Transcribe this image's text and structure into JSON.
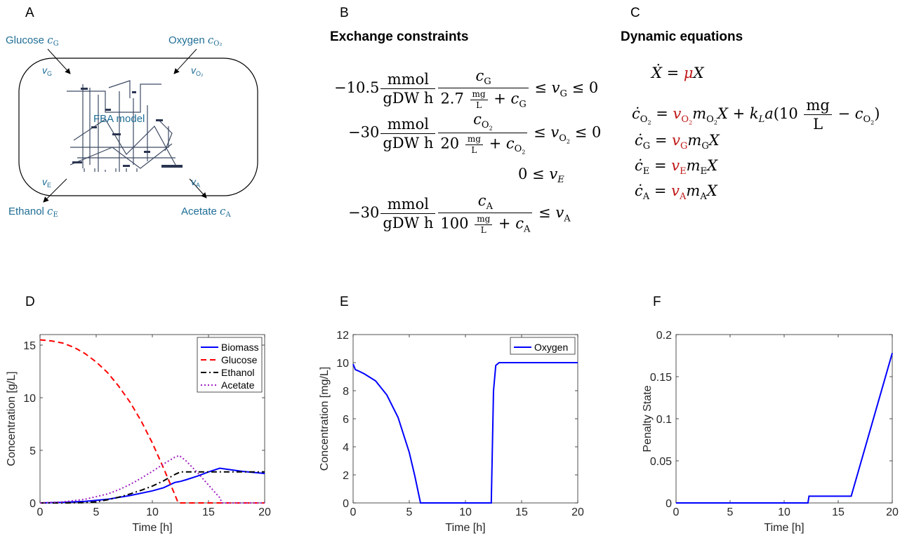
{
  "panel_labels": {
    "a": "A",
    "b": "B",
    "c": "C",
    "d": "D",
    "e": "E",
    "f": "F"
  },
  "panel_a": {
    "glucose": "Glucose",
    "oxygen": "Oxygen",
    "ethanol": "Ethanol",
    "acetate": "Acetate",
    "model_label": "FBA model"
  },
  "panel_b": {
    "title": "Exchange constraints",
    "rows": [
      {
        "coef": "−10.5",
        "unit_num": "mmol",
        "unit_den": "gDW h",
        "km": "2.7",
        "bound": "≤ v_G ≤ 0"
      },
      {
        "coef": "−30",
        "unit_num": "mmol",
        "unit_den": "gDW h",
        "km": "20",
        "bound": "≤ v_O2 ≤ 0"
      },
      {
        "bound": "0 ≤ v_E"
      },
      {
        "coef": "−30",
        "unit_num": "mmol",
        "unit_den": "gDW h",
        "km": "100",
        "bound": "≤ v_A"
      }
    ]
  },
  "panel_c": {
    "title": "Dynamic equations",
    "oxygen_sat": "10"
  },
  "colors": {
    "line_blue": "#0000ff",
    "line_red": "#ff0000",
    "line_black": "#000000",
    "line_purple": "#a020c0",
    "eq_red": "#c01818",
    "panel_a_text": "#1f6e96"
  },
  "chart_data": [
    {
      "type": "line",
      "panel": "D",
      "xlabel": "Time [h]",
      "ylabel": "Concentration [g/L]",
      "xlim": [
        0,
        20
      ],
      "ylim": [
        0,
        16
      ],
      "xticks": [
        0,
        5,
        10,
        15,
        20
      ],
      "yticks": [
        0,
        5,
        10,
        15
      ],
      "legend_position": "top-right",
      "series": [
        {
          "name": "Biomass",
          "color": "#0000ff",
          "dash": "solid",
          "x": [
            0,
            2,
            4,
            6,
            8,
            10,
            11,
            12,
            12.5,
            13,
            14,
            15,
            16,
            17,
            18,
            19,
            20
          ],
          "y": [
            0,
            0.05,
            0.15,
            0.35,
            0.7,
            1.15,
            1.45,
            1.95,
            2.05,
            2.2,
            2.55,
            2.95,
            3.3,
            3.15,
            3.0,
            2.9,
            2.8
          ]
        },
        {
          "name": "Glucose",
          "color": "#ff0000",
          "dash": "dashed",
          "x": [
            0,
            1,
            2,
            3,
            4,
            5,
            6,
            7,
            8,
            9,
            10,
            11,
            12,
            12.3,
            13,
            14,
            16,
            18,
            20
          ],
          "y": [
            15.5,
            15.4,
            15.2,
            14.8,
            14.2,
            13.4,
            12.4,
            11.1,
            9.6,
            7.8,
            5.7,
            3.3,
            0.8,
            0,
            0,
            0,
            0,
            0,
            0
          ]
        },
        {
          "name": "Ethanol",
          "color": "#000000",
          "dash": "dashdot",
          "x": [
            0,
            2,
            4,
            5,
            6,
            7,
            8,
            9,
            10,
            11,
            12,
            12.5,
            13,
            14,
            16,
            18,
            20
          ],
          "y": [
            0,
            0,
            0.03,
            0.1,
            0.3,
            0.55,
            0.85,
            1.2,
            1.6,
            2.1,
            2.7,
            2.95,
            2.95,
            2.95,
            2.95,
            2.95,
            2.95
          ]
        },
        {
          "name": "Acetate",
          "color": "#a020c0",
          "dash": "dotted",
          "x": [
            0,
            2,
            4,
            6,
            7,
            8,
            9,
            10,
            11,
            12,
            12.4,
            13,
            14,
            15,
            16,
            16.2,
            18,
            20
          ],
          "y": [
            0,
            0.1,
            0.35,
            0.85,
            1.25,
            1.75,
            2.35,
            3.0,
            3.7,
            4.35,
            4.5,
            4.0,
            2.9,
            1.7,
            0.5,
            0,
            0,
            0
          ]
        }
      ]
    },
    {
      "type": "line",
      "panel": "E",
      "xlabel": "Time [h]",
      "ylabel": "Concentration [mg/L]",
      "xlim": [
        0,
        20
      ],
      "ylim": [
        0,
        12
      ],
      "xticks": [
        0,
        5,
        10,
        15,
        20
      ],
      "yticks": [
        0,
        2,
        4,
        6,
        8,
        10,
        12
      ],
      "legend_position": "top-right",
      "series": [
        {
          "name": "Oxygen",
          "color": "#0000ff",
          "dash": "solid",
          "x": [
            0,
            0.2,
            0.5,
            1,
            2,
            3,
            4,
            5,
            5.5,
            6,
            7,
            8,
            10,
            12,
            12.3,
            12.5,
            12.7,
            13,
            14,
            16,
            18,
            20
          ],
          "y": [
            9.9,
            9.5,
            9.4,
            9.2,
            8.7,
            7.7,
            6.1,
            3.6,
            1.9,
            0,
            0,
            0,
            0,
            0,
            0,
            8.0,
            9.8,
            10,
            10,
            10,
            10,
            10
          ]
        }
      ]
    },
    {
      "type": "line",
      "panel": "F",
      "xlabel": "Time [h]",
      "ylabel": "Penalty State",
      "xlim": [
        0,
        20
      ],
      "ylim": [
        0,
        0.2
      ],
      "xticks": [
        0,
        5,
        10,
        15,
        20
      ],
      "yticks": [
        0,
        0.05,
        0.1,
        0.15,
        0.2
      ],
      "series": [
        {
          "color": "#0000ff",
          "dash": "solid",
          "x": [
            0,
            12.2,
            12.3,
            16.2,
            20
          ],
          "y": [
            0,
            0,
            0.008,
            0.008,
            0.178
          ]
        }
      ]
    }
  ]
}
